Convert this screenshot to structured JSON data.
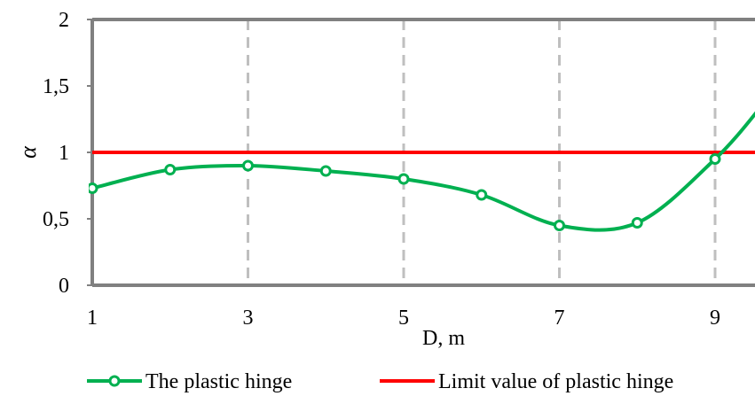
{
  "chart_data": {
    "type": "line",
    "xlabel": "D, m",
    "ylabel": "α",
    "xlim": [
      1,
      9.3
    ],
    "ylim": [
      0,
      2
    ],
    "x_ticks": [
      1,
      3,
      5,
      7,
      9
    ],
    "y_ticks": [
      "0",
      "0,5",
      "1",
      "1,5",
      "2"
    ],
    "y_tick_values": [
      0,
      0.5,
      1,
      1.5,
      2
    ],
    "vertical_grid": true,
    "grid_style": "dashed",
    "legend_position": "bottom",
    "series": [
      {
        "name": "The plastic hinge",
        "color": "#00b050",
        "marker": "hollow-circle",
        "smooth": true,
        "x": [
          1,
          2,
          3,
          4,
          5,
          6,
          7,
          8,
          9,
          9.6
        ],
        "y": [
          0.73,
          0.87,
          0.9,
          0.86,
          0.8,
          0.68,
          0.45,
          0.47,
          0.95,
          1.35
        ],
        "marker_count": 9
      },
      {
        "name": "Limit value of plastic hinge",
        "color": "#ff0000",
        "marker": "none",
        "x": [
          1,
          9.6
        ],
        "y": [
          1,
          1
        ]
      }
    ]
  }
}
